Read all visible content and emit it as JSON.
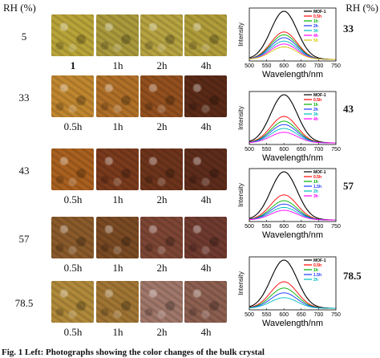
{
  "rh_header": "RH (%)",
  "rh_header_right": "RH (%)",
  "rows": [
    {
      "rh": "5",
      "rh_right": "33",
      "times": [
        "1",
        "1h",
        "2h",
        "4h"
      ],
      "photo_colors": [
        "#b9a439",
        "#aa9a3c",
        "#b6a341",
        "#b09d3a"
      ]
    },
    {
      "rh": "33",
      "rh_right": "43",
      "times": [
        "0.5h",
        "1h",
        "2h",
        "4h"
      ],
      "photo_colors": [
        "#c0862f",
        "#b07028",
        "#93501e",
        "#5a2a17"
      ]
    },
    {
      "rh": "43",
      "rh_right": "57",
      "times": [
        "0.5h",
        "1h",
        "2h",
        "4h"
      ],
      "photo_colors": [
        "#a9601f",
        "#7a3a1c",
        "#6d341b",
        "#5e2c1b"
      ]
    },
    {
      "rh": "57",
      "rh_right": "78.5",
      "times": [
        "0.5h",
        "1h",
        "2h",
        "4h"
      ],
      "photo_colors": [
        "#8a5a2a",
        "#7a4a23",
        "#7d4534",
        "#6f3a2f"
      ]
    },
    {
      "rh": "78.5",
      "rh_right": "",
      "times": [
        "0.5h",
        "1h",
        "2h",
        "4h"
      ],
      "photo_colors": [
        "#b08a3a",
        "#a07533",
        "#a0776a",
        "#8c5f50"
      ]
    }
  ],
  "chart_data": [
    {
      "type": "line",
      "xlabel": "Wavelength/nm",
      "ylabel": "Intensity",
      "xlim": [
        500,
        750
      ],
      "x_ticks": [
        "500",
        "550",
        "600",
        "650",
        "700",
        "750"
      ],
      "legend": [
        "MOF-1",
        "0.5h",
        "1h",
        "2h",
        "3h",
        "4h",
        "5h"
      ],
      "colors": [
        "#000000",
        "#ff0000",
        "#00b000",
        "#1a37ff",
        "#00bcbc",
        "#ff00ff",
        "#d6c700"
      ],
      "peak_rel": [
        1.0,
        0.57,
        0.51,
        0.45,
        0.38,
        0.32,
        0.26
      ]
    },
    {
      "type": "line",
      "xlabel": "Wavelength/nm",
      "ylabel": "Intensity",
      "xlim": [
        500,
        750
      ],
      "x_ticks": [
        "500",
        "550",
        "600",
        "650",
        "700",
        "750"
      ],
      "legend": [
        "MOF-1",
        "0.5h",
        "1h",
        "2h",
        "3h",
        "4h"
      ],
      "colors": [
        "#000000",
        "#ff0000",
        "#00b000",
        "#1a37ff",
        "#00bcbc",
        "#ff00ff"
      ],
      "peak_rel": [
        1.0,
        0.55,
        0.45,
        0.38,
        0.3,
        0.22
      ]
    },
    {
      "type": "line",
      "xlabel": "Wavelength/nm",
      "ylabel": "Intensity",
      "xlim": [
        500,
        750
      ],
      "x_ticks": [
        "500",
        "550",
        "600",
        "650",
        "700",
        "750"
      ],
      "legend": [
        "MOF-1",
        "0.5h",
        "1h",
        "1.5h",
        "2h",
        "3h"
      ],
      "colors": [
        "#000000",
        "#ff0000",
        "#00b000",
        "#1a37ff",
        "#00bcbc",
        "#ff00ff"
      ],
      "peak_rel": [
        1.0,
        0.52,
        0.4,
        0.33,
        0.26,
        0.2
      ]
    },
    {
      "type": "line",
      "xlabel": "Wavelength/nm",
      "ylabel": "Intensity",
      "xlim": [
        500,
        750
      ],
      "x_ticks": [
        "500",
        "550",
        "600",
        "650",
        "700",
        "750"
      ],
      "legend": [
        "MOF-1",
        "0.5h",
        "1h",
        "1.5h",
        "2h"
      ],
      "colors": [
        "#000000",
        "#ff0000",
        "#00b000",
        "#1a37ff",
        "#00bcbc"
      ],
      "peak_rel": [
        1.0,
        0.55,
        0.42,
        0.32,
        0.22
      ]
    }
  ],
  "caption": "Fig. 1 Left: Photographs showing the color changes of the bulk crystal"
}
